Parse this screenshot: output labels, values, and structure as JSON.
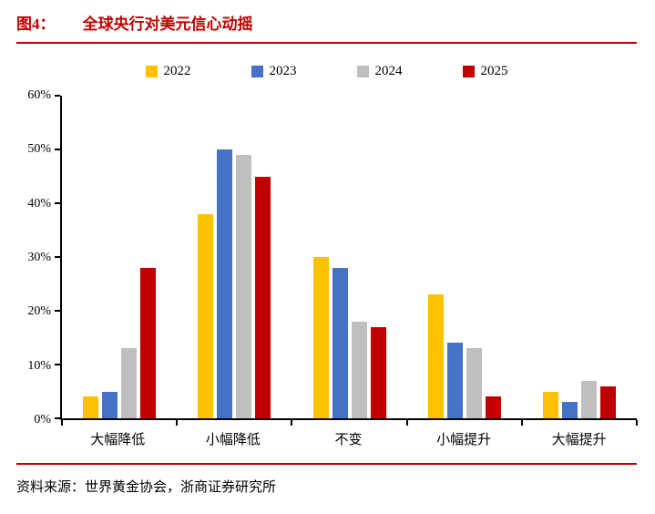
{
  "header": {
    "figure_label": "图4：",
    "title": "全球央行对美元信心动摇"
  },
  "source": "资料来源：世界黄金协会，浙商证券研究所",
  "accent_color": "#C00000",
  "chart_data": {
    "type": "bar",
    "title": "全球央行对美元信心动摇",
    "categories": [
      "大幅降低",
      "小幅降低",
      "不变",
      "小幅提升",
      "大幅提升"
    ],
    "series": [
      {
        "name": "2022",
        "color": "#FFC000",
        "values": [
          4,
          38,
          30,
          23,
          5
        ]
      },
      {
        "name": "2023",
        "color": "#4472C4",
        "values": [
          5,
          50,
          28,
          14,
          3
        ]
      },
      {
        "name": "2024",
        "color": "#BFBFBF",
        "values": [
          13,
          49,
          18,
          13,
          7
        ]
      },
      {
        "name": "2025",
        "color": "#C00000",
        "values": [
          28,
          45,
          17,
          4,
          6
        ]
      }
    ],
    "xlabel": "",
    "ylabel": "",
    "ylim": [
      0,
      60
    ],
    "ytick_step": 10,
    "ytick_suffix": "%",
    "legend_position": "top",
    "grid": false
  }
}
